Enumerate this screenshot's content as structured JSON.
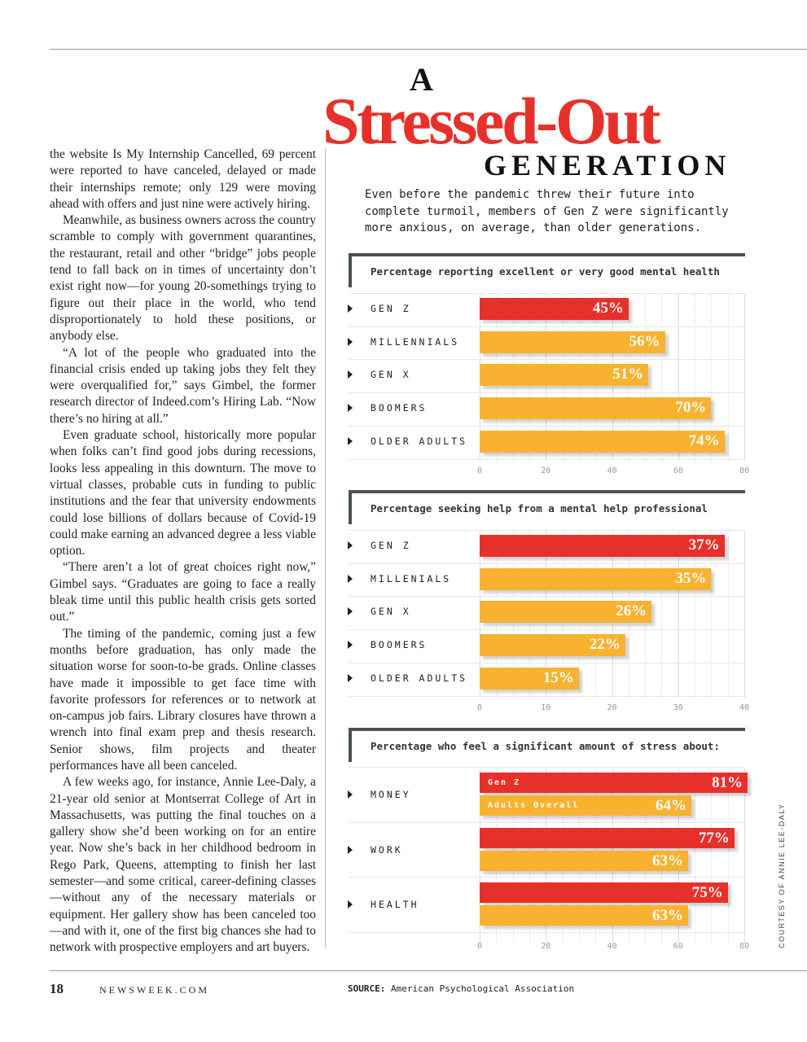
{
  "colors": {
    "red": "#e8302a",
    "yellow": "#f8b230",
    "frame": "#4a5258"
  },
  "headline": {
    "a": "A",
    "main": "Stressed-Out",
    "generation": "GENERATION"
  },
  "subtitle": "Even before the pandemic threw their future into complete turmoil, members of Gen Z were significantly more anxious, on average, than older generations.",
  "article": [
    "the website Is My Internship Cancelled, 69 percent were reported to have canceled, delayed or made their internships remote; only 129 were moving ahead with offers and just nine were actively hiring.",
    "Meanwhile, as business owners across the country scramble to comply with government quarantines, the restaurant, retail and other “bridge” jobs people tend to fall back on in times of uncertainty don’t exist right now—for young 20-somethings trying to figure out their place in the world, who tend disproportionately to hold these positions, or anybody else.",
    "“A lot of the people who graduated into the financial crisis ended up taking jobs they felt they were overqualified for,” says Gimbel, the former research director of Indeed.com’s Hiring Lab. “Now there’s no hiring at all.”",
    "Even graduate school, historically more popular when folks can’t find good jobs during recessions, looks less appealing in this downturn. The move to virtual classes, probable cuts in funding to public institutions and the fear that university endowments could lose billions of dollars because of Covid-19 could make earning an advanced degree a less viable option.",
    "“There aren’t a lot of great choices right now,” Gimbel says. “Graduates are going to face a really bleak time until this public health crisis gets sorted out.”",
    "The timing of the pandemic, coming just a few months before graduation, has only made the situation worse for soon-to-be grads. Online classes have made it impossible to get face time with favorite professors for references or to network at on-campus job fairs. Library closures have thrown a wrench into final exam prep and thesis research. Senior shows, film projects and theater performances have all been canceled.",
    "A few weeks ago, for instance, Annie Lee-Daly, a 21-year old senior at Montserrat College of Art in Massachusetts, was putting the final touches on a gallery show she’d been working on for an entire year. Now she’s back in her childhood bedroom in Rego Park, Queens, attempting to finish her last semester—and some critical, career-defining classes—without any of the necessary materials or equipment. Her gallery show has been canceled too—and with it, one of the first big chances she had to network with prospective employers and art buyers."
  ],
  "chart_data": [
    {
      "type": "bar",
      "title": "Percentage reporting excellent or very good mental health",
      "categories": [
        "GEN Z",
        "MILLENNIALS",
        "GEN X",
        "BOOMERS",
        "OLDER ADULTS"
      ],
      "values": [
        45,
        56,
        51,
        70,
        74
      ],
      "highlight": [
        0
      ],
      "xlim": [
        0,
        80
      ],
      "xticks": [
        "0",
        "20",
        "40",
        "60",
        "80"
      ],
      "value_suffix": "%"
    },
    {
      "type": "bar",
      "title": "Percentage seeking help from a mental help professional",
      "categories": [
        "GEN Z",
        "MILLENIALS",
        "GEN X",
        "BOOMERS",
        "OLDER ADULTS"
      ],
      "values": [
        37,
        35,
        26,
        22,
        15
      ],
      "highlight": [
        0
      ],
      "xlim": [
        0,
        40
      ],
      "xticks": [
        "0",
        "10",
        "20",
        "30",
        "40"
      ],
      "value_suffix": "%"
    },
    {
      "type": "bar",
      "title": "Percentage who feel a significant amount of stress about:",
      "categories": [
        "MONEY",
        "WORK",
        "HEALTH"
      ],
      "series": [
        {
          "name": "Gen Z",
          "values": [
            81,
            77,
            75
          ],
          "color": "#e8302a"
        },
        {
          "name": "Adults Overall",
          "values": [
            64,
            63,
            63
          ],
          "color": "#f8b230"
        }
      ],
      "xlim": [
        0,
        80
      ],
      "xticks": [
        "0",
        "20",
        "40",
        "60",
        "80"
      ],
      "value_suffix": "%"
    }
  ],
  "credit": "COURTESY OF ANNIE LEE-DALY",
  "footer": {
    "page": "18",
    "site": "NEWSWEEK.COM",
    "source_label": "SOURCE:",
    "source": "American Psychological Association"
  }
}
